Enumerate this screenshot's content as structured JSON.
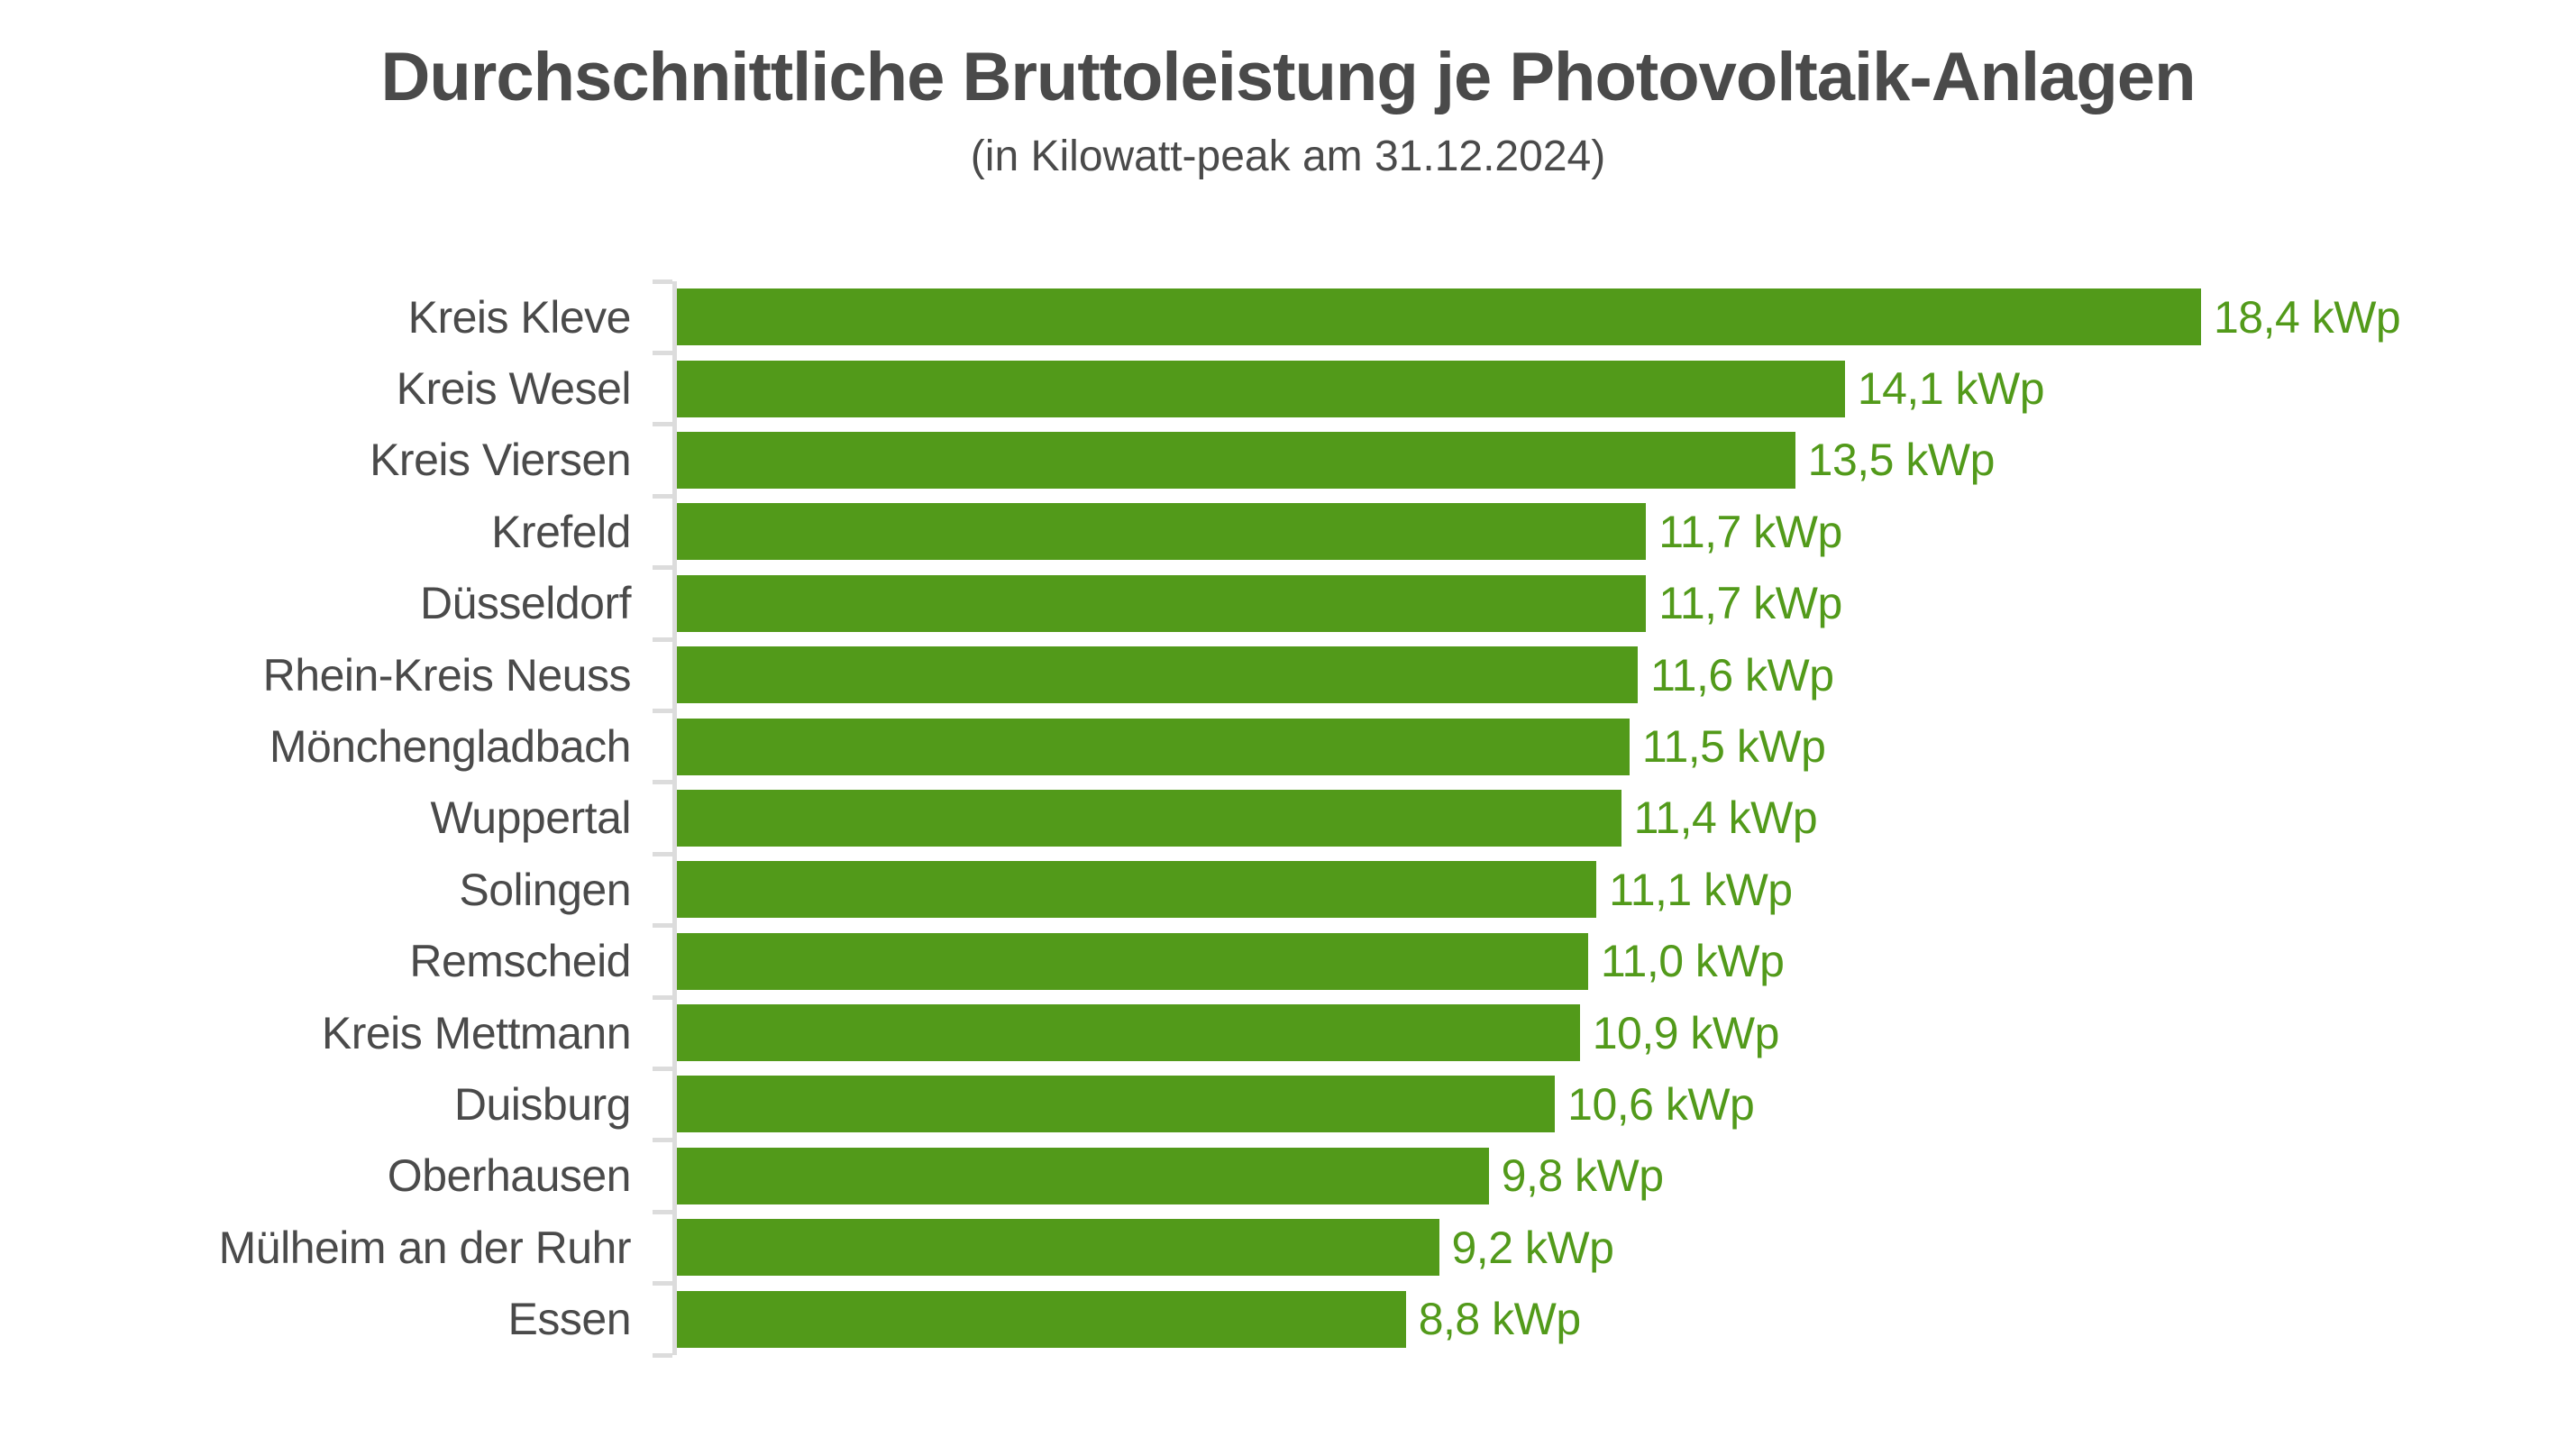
{
  "header": {
    "title": "Durchschnittliche Bruttoleistung je Photovoltaik-Anlagen",
    "subtitle": "(in Kilowatt-peak am 31.12.2024)"
  },
  "colors": {
    "bar": "#529a1a",
    "value_label": "#529a1a",
    "category_label": "#4a4a4a",
    "title": "#4a4a4a",
    "axis": "#dcdcdc",
    "background": "#ffffff"
  },
  "chart_data": {
    "type": "bar",
    "orientation": "horizontal",
    "title": "Durchschnittliche Bruttoleistung je Photovoltaik-Anlagen",
    "subtitle": "(in Kilowatt-peak am 31.12.2024)",
    "unit": "kWp",
    "categories": [
      "Kreis Kleve",
      "Kreis Wesel",
      "Kreis Viersen",
      "Krefeld",
      "Düsseldorf",
      "Rhein-Kreis Neuss",
      "Mönchengladbach",
      "Wuppertal",
      "Solingen",
      "Remscheid",
      "Kreis Mettmann",
      "Duisburg",
      "Oberhausen",
      "Mülheim an der Ruhr",
      "Essen"
    ],
    "values": [
      18.4,
      14.1,
      13.5,
      11.7,
      11.7,
      11.6,
      11.5,
      11.4,
      11.1,
      11.0,
      10.9,
      10.6,
      9.8,
      9.2,
      8.8
    ],
    "value_labels": [
      "18,4 kWp",
      "14,1 kWp",
      "13,5 kWp",
      "11,7 kWp",
      "11,7 kWp",
      "11,6 kWp",
      "11,5 kWp",
      "11,4 kWp",
      "11,1 kWp",
      "11,0 kWp",
      "10,9 kWp",
      "10,6 kWp",
      "9,8 kWp",
      "9,2 kWp",
      "8,8 kWp"
    ],
    "xlim": [
      0,
      18.4
    ],
    "grid": false,
    "x_axis_labels_shown": false,
    "legend": "none",
    "value_label_position": "right-of-bar"
  }
}
